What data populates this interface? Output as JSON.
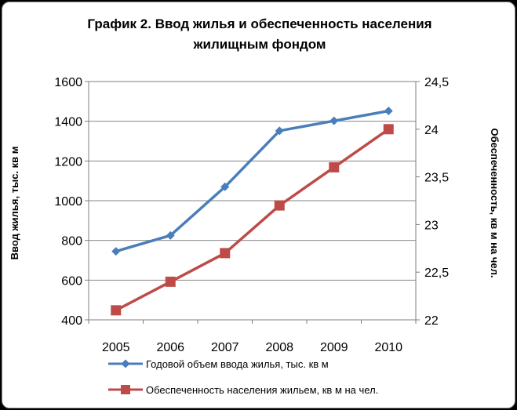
{
  "chart_data": {
    "type": "line",
    "title_lines": [
      "График 2. Ввод жилья и обеспеченность населения",
      "жилищным фондом"
    ],
    "categories": [
      "2005",
      "2006",
      "2007",
      "2008",
      "2009",
      "2010"
    ],
    "y_left": {
      "label": "Ввод жилья, тыс. кв м",
      "min": 400,
      "max": 1600,
      "ticks": [
        "400",
        "600",
        "800",
        "1000",
        "1200",
        "1400",
        "1600"
      ]
    },
    "y_right": {
      "label": "Обеспеченность, кв м на чел.",
      "min": 22,
      "max": 24.5,
      "ticks": [
        "22",
        "22,5",
        "23",
        "23,5",
        "24",
        "24,5"
      ]
    },
    "grid": true,
    "legend_position": "bottom",
    "series": [
      {
        "name": "Годовой объем ввода жилья, тыс. кв м",
        "axis": "left",
        "marker": "diamond",
        "color": "#4a7ebb",
        "values": [
          745,
          825,
          1070,
          1352,
          1402,
          1452
        ]
      },
      {
        "name": "Обеспеченность населения жильем, кв м на чел.",
        "axis": "right",
        "marker": "square",
        "color": "#be4b48",
        "values": [
          22.1,
          22.4,
          22.7,
          23.2,
          23.6,
          24.0
        ]
      }
    ]
  }
}
